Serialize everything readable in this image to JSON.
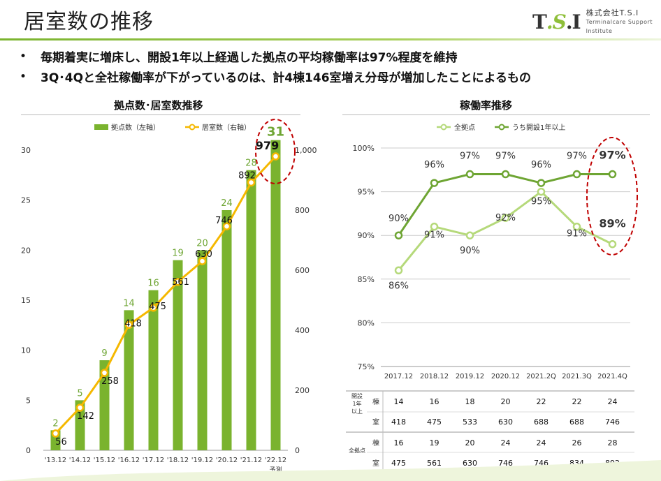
{
  "page": {
    "title": "居室数の推移",
    "logo_mark": "T.S.I",
    "logo_jp": "株式会社T.S.I",
    "logo_en": "Terminalcare Support Institute",
    "bullets": [
      "•",
      "毎期着実に増床し、開設1年以上経過した拠点の平均稼働率は97%程度を維持",
      "3Q･4Qと全社稼働率が下がっているのは、計4棟146室増え分母が増加したことによるもの"
    ],
    "colors": {
      "accent": "#7ab32e",
      "bar": "#7ab32e",
      "line_orange": "#f5b800",
      "line_light": "#b5d97a",
      "line_dark": "#6ea533",
      "highlight": "#c00000"
    }
  },
  "chart_data": [
    {
      "type": "bar",
      "title": "拠点数･居室数推移",
      "categories": [
        "'13.12",
        "'14.12",
        "'15.12",
        "'16.12",
        "'17.12",
        "'18.12",
        "'19.12",
        "'20.12",
        "'21.12",
        "'22.12"
      ],
      "category_note": "予測",
      "series": [
        {
          "name": "拠点数（左軸）",
          "values": [
            2,
            5,
            9,
            14,
            16,
            19,
            20,
            24,
            28,
            31
          ],
          "axis": "left",
          "kind": "bar"
        },
        {
          "name": "居室数（右軸）",
          "values": [
            56,
            142,
            258,
            418,
            475,
            561,
            630,
            746,
            892,
            979
          ],
          "axis": "right",
          "kind": "line"
        }
      ],
      "ylim_left": [
        0,
        30
      ],
      "yticks_left": [
        "0",
        "5",
        "10",
        "15",
        "20",
        "25",
        "30"
      ],
      "ylim_right": [
        0,
        1000
      ],
      "yticks_right": [
        "0",
        "200",
        "400",
        "600",
        "800",
        "1,000"
      ],
      "legend": "top"
    },
    {
      "type": "line",
      "title": "稼働率推移",
      "categories": [
        "2017.12",
        "2018.12",
        "2019.12",
        "2020.12",
        "2021.2Q",
        "2021.3Q",
        "2021.4Q"
      ],
      "series": [
        {
          "name": "全拠点",
          "values": [
            86,
            91,
            90,
            92,
            95,
            91,
            89
          ],
          "labels": [
            "86%",
            "91%",
            "90%",
            "92%",
            "95%",
            "91%",
            "89%"
          ]
        },
        {
          "name": "うち開設1年以上",
          "values": [
            90,
            96,
            97,
            97,
            96,
            97,
            97
          ],
          "labels": [
            "90%",
            "96%",
            "97%",
            "97%",
            "96%",
            "97%",
            "97%"
          ]
        }
      ],
      "ylim": [
        75,
        100
      ],
      "yticks": [
        "75%",
        "80%",
        "85%",
        "90%",
        "95%",
        "100%"
      ],
      "legend": "top",
      "grid": true
    },
    {
      "type": "table",
      "rows": [
        {
          "group": "開設\n1年\n以上",
          "label": "棟",
          "values": [
            "14",
            "16",
            "18",
            "20",
            "22",
            "22",
            "24"
          ]
        },
        {
          "group": "",
          "label": "室",
          "values": [
            "418",
            "475",
            "533",
            "630",
            "688",
            "688",
            "746"
          ]
        },
        {
          "group": "全拠点",
          "label": "棟",
          "values": [
            "16",
            "19",
            "20",
            "24",
            "24",
            "26",
            "28"
          ]
        },
        {
          "group": "",
          "label": "室",
          "values": [
            "475",
            "561",
            "630",
            "746",
            "746",
            "834",
            "892"
          ]
        }
      ]
    }
  ]
}
